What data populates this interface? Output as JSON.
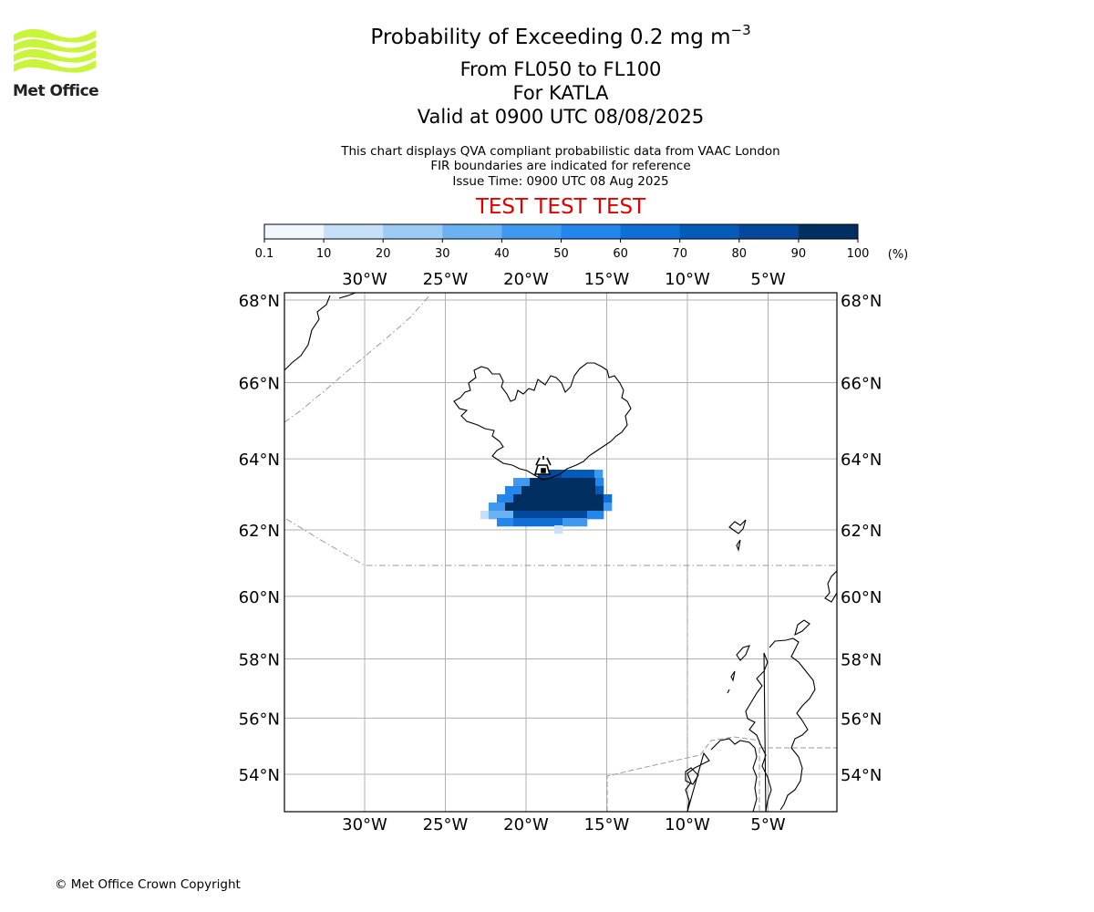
{
  "title": {
    "main": "Probability of Exceeding 0.2 mg m",
    "unit_superscript": "−3",
    "levels": "From FL050 to FL100",
    "volcano": "For KATLA",
    "valid": "Valid at 0900 UTC 08/08/2025"
  },
  "description": {
    "line1": "This chart displays QVA compliant probabilistic data from VAAC London",
    "line2": "FIR boundaries are indicated for reference",
    "line3": "Issue Time: 0900 UTC 08 Aug 2025"
  },
  "banner": "TEST TEST TEST",
  "logo": {
    "text": "Met Office",
    "color": "#c8f53a"
  },
  "colorbar": {
    "ticks": [
      "0.1",
      "10",
      "20",
      "30",
      "40",
      "50",
      "60",
      "70",
      "80",
      "90",
      "100"
    ],
    "unit": "(%)",
    "colors": [
      "#f0f7ff",
      "#c6e0fa",
      "#9ccbf5",
      "#6bb2f2",
      "#3f99ef",
      "#2386ea",
      "#0f6fd7",
      "#055bb8",
      "#03489a",
      "#022f62"
    ]
  },
  "map": {
    "lon_labels": [
      "30°W",
      "25°W",
      "20°W",
      "15°W",
      "10°W",
      "5°W"
    ],
    "lon_values": [
      -30,
      -25,
      -20,
      -15,
      -10,
      -5
    ],
    "lat_labels": [
      "68°N",
      "66°N",
      "64°N",
      "62°N",
      "60°N",
      "58°N",
      "56°N",
      "54°N"
    ],
    "lat_values": [
      68,
      66,
      64,
      62,
      60,
      58,
      56,
      54
    ],
    "volcano_marker": "volcano-icon"
  },
  "copyright": "© Met Office Crown Copyright"
}
